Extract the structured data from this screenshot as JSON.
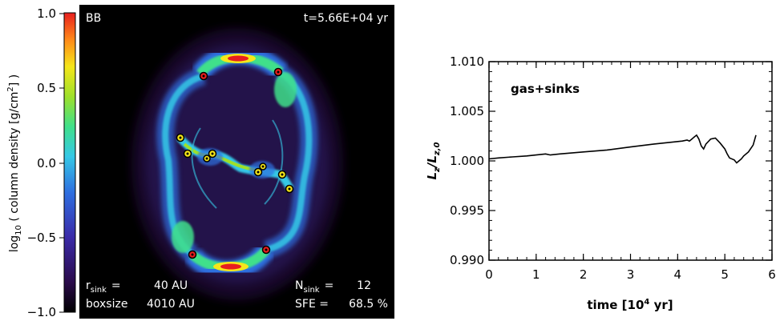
{
  "left_panel": {
    "label": "BB",
    "time_label": "t=5.66E+04 yr",
    "colorbar": {
      "label_main": "log",
      "label_sub": "10",
      "label_mid": " ( column density [g/cm",
      "label_sup": "2",
      "label_end": "] )",
      "ticks": [
        "1.0",
        "0.5",
        "0.0",
        "−0.5",
        "−1.0"
      ],
      "range": [
        -1.0,
        1.0
      ],
      "colors": [
        "#000000",
        "#2a0a4a",
        "#3a2aa8",
        "#2f6fe0",
        "#35c8e6",
        "#40e08a",
        "#9ee02a",
        "#f5e61a",
        "#ff8a1a",
        "#e81e1e"
      ]
    },
    "stats": {
      "r_sink_symbol": "r",
      "r_sink_sub": "sink",
      "r_sink_eq": "=",
      "r_sink_value": "40 AU",
      "boxsize_label": "boxsize",
      "boxsize_value": "4010 AU",
      "n_sink_symbol": "N",
      "n_sink_sub": "sink",
      "n_sink_eq": "=",
      "n_sink_value": "12",
      "sfe_label": "SFE =",
      "sfe_value": "68.5 %"
    }
  },
  "chart_data": {
    "type": "line",
    "annotation": "gas+sinks",
    "ylabel_main": "L",
    "ylabel_sub": "z",
    "ylabel_denom": "L",
    "ylabel_denom_sub": "z,0",
    "xlabel_main": "time  [10",
    "xlabel_sup": "4",
    "xlabel_end": " yr]",
    "xlim": [
      0,
      6
    ],
    "ylim": [
      0.99,
      1.01
    ],
    "x_ticks": [
      0,
      1,
      2,
      3,
      4,
      5,
      6
    ],
    "x_tick_labels": [
      "0",
      "1",
      "2",
      "3",
      "4",
      "5",
      "6"
    ],
    "y_ticks": [
      0.99,
      0.995,
      1.0,
      1.005,
      1.01
    ],
    "y_tick_labels": [
      "0.990",
      "0.995",
      "1.000",
      "1.005",
      "1.010"
    ],
    "series": [
      {
        "x": [
          0.0,
          0.2,
          0.5,
          0.8,
          1.0,
          1.2,
          1.3,
          1.5,
          2.0,
          2.5,
          3.0,
          3.5,
          3.9,
          4.1,
          4.2,
          4.25,
          4.3,
          4.35,
          4.4,
          4.45,
          4.5,
          4.55,
          4.6,
          4.7,
          4.8,
          4.9,
          5.0,
          5.05,
          5.1,
          5.2,
          5.25,
          5.3,
          5.35,
          5.4,
          5.5,
          5.6,
          5.66
        ],
        "y": [
          1.0002,
          1.0003,
          1.0004,
          1.0005,
          1.0006,
          1.0007,
          1.0006,
          1.0007,
          1.0009,
          1.0011,
          1.0014,
          1.0017,
          1.0019,
          1.002,
          1.0021,
          1.002,
          1.0022,
          1.0024,
          1.0026,
          1.0022,
          1.0015,
          1.0012,
          1.0017,
          1.0022,
          1.0023,
          1.0018,
          1.0012,
          1.0007,
          1.0003,
          1.0001,
          0.9998,
          1.0,
          1.0002,
          1.0005,
          1.0009,
          1.0016,
          1.0026
        ]
      }
    ]
  }
}
